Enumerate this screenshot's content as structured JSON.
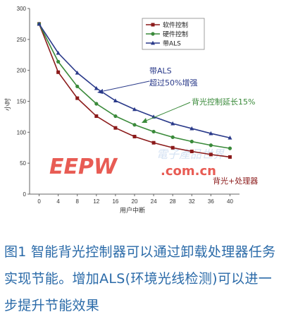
{
  "chart_data": {
    "type": "line",
    "xlabel": "用户中断",
    "ylabel": "小时",
    "x": [
      0,
      4,
      8,
      12,
      16,
      20,
      24,
      28,
      32,
      36,
      40
    ],
    "ylim": [
      0,
      300
    ],
    "xlim": [
      -2,
      42
    ],
    "yticks": [
      0,
      50,
      100,
      150,
      200,
      250,
      300
    ],
    "grid": false,
    "legend_position": "top-right",
    "series": [
      {
        "name": "软件控制",
        "color": "#8b1a1a",
        "marker": "square",
        "values": [
          275,
          197,
          155,
          126,
          107,
          93,
          83,
          75,
          69,
          64,
          60
        ]
      },
      {
        "name": "硬件控制",
        "color": "#3a8a3a",
        "marker": "circle",
        "values": [
          275,
          214,
          174,
          146,
          126,
          112,
          101,
          92,
          85,
          79,
          74
        ]
      },
      {
        "name": "带ALS",
        "color": "#2a3a8a",
        "marker": "triangle",
        "values": [
          275,
          228,
          196,
          171,
          151,
          137,
          125,
          114,
          106,
          98,
          91
        ]
      }
    ],
    "annotations": {
      "als_title": "带ALS",
      "als_sub": "超过50%增强",
      "backlight": "背光控制延长15%",
      "cpu": "背光+处理器"
    }
  },
  "watermark": {
    "letters": "EEPW",
    "chinese": "電子產品世界",
    "url": ".com.cn"
  },
  "caption": "图1  智能背光控制器可以通过卸载处理器任务实现节能。增加ALS(环境光线检测)可以进一步提升节能效果"
}
